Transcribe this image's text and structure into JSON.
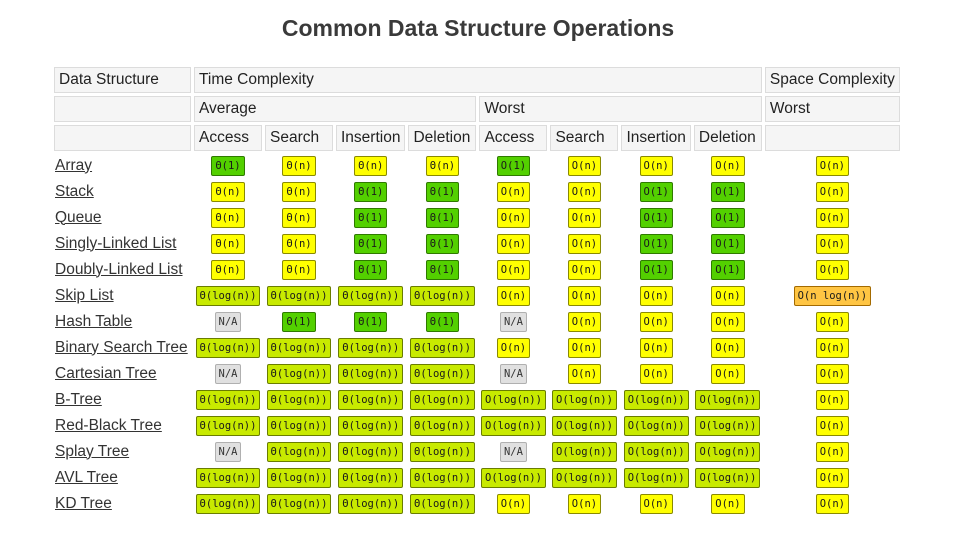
{
  "page": {
    "title": "Common Data Structure Operations"
  },
  "headers": {
    "data_structure": "Data Structure",
    "time_complexity": "Time Complexity",
    "space_complexity": "Space Complexity",
    "average": "Average",
    "worst": "Worst",
    "space_worst": "Worst",
    "ops": [
      "Access",
      "Search",
      "Insertion",
      "Deletion",
      "Access",
      "Search",
      "Insertion",
      "Deletion"
    ]
  },
  "legend_colors": {
    "green": "#53d000",
    "light_green": "#c8ea00",
    "yellow": "#ffff00",
    "orange": "#ffc543",
    "gray": "#e0e0e0"
  },
  "rows": [
    {
      "name": "Array",
      "cells": [
        [
          "Θ(1)",
          "green"
        ],
        [
          "Θ(n)",
          "yellow"
        ],
        [
          "Θ(n)",
          "yellow"
        ],
        [
          "Θ(n)",
          "yellow"
        ],
        [
          "O(1)",
          "green"
        ],
        [
          "O(n)",
          "yellow"
        ],
        [
          "O(n)",
          "yellow"
        ],
        [
          "O(n)",
          "yellow"
        ],
        [
          "O(n)",
          "yellow"
        ]
      ]
    },
    {
      "name": "Stack",
      "cells": [
        [
          "Θ(n)",
          "yellow"
        ],
        [
          "Θ(n)",
          "yellow"
        ],
        [
          "Θ(1)",
          "green"
        ],
        [
          "Θ(1)",
          "green"
        ],
        [
          "O(n)",
          "yellow"
        ],
        [
          "O(n)",
          "yellow"
        ],
        [
          "O(1)",
          "green"
        ],
        [
          "O(1)",
          "green"
        ],
        [
          "O(n)",
          "yellow"
        ]
      ]
    },
    {
      "name": "Queue",
      "cells": [
        [
          "Θ(n)",
          "yellow"
        ],
        [
          "Θ(n)",
          "yellow"
        ],
        [
          "Θ(1)",
          "green"
        ],
        [
          "Θ(1)",
          "green"
        ],
        [
          "O(n)",
          "yellow"
        ],
        [
          "O(n)",
          "yellow"
        ],
        [
          "O(1)",
          "green"
        ],
        [
          "O(1)",
          "green"
        ],
        [
          "O(n)",
          "yellow"
        ]
      ]
    },
    {
      "name": "Singly-Linked List",
      "cells": [
        [
          "Θ(n)",
          "yellow"
        ],
        [
          "Θ(n)",
          "yellow"
        ],
        [
          "Θ(1)",
          "green"
        ],
        [
          "Θ(1)",
          "green"
        ],
        [
          "O(n)",
          "yellow"
        ],
        [
          "O(n)",
          "yellow"
        ],
        [
          "O(1)",
          "green"
        ],
        [
          "O(1)",
          "green"
        ],
        [
          "O(n)",
          "yellow"
        ]
      ]
    },
    {
      "name": "Doubly-Linked List",
      "cells": [
        [
          "Θ(n)",
          "yellow"
        ],
        [
          "Θ(n)",
          "yellow"
        ],
        [
          "Θ(1)",
          "green"
        ],
        [
          "Θ(1)",
          "green"
        ],
        [
          "O(n)",
          "yellow"
        ],
        [
          "O(n)",
          "yellow"
        ],
        [
          "O(1)",
          "green"
        ],
        [
          "O(1)",
          "green"
        ],
        [
          "O(n)",
          "yellow"
        ]
      ]
    },
    {
      "name": "Skip List",
      "cells": [
        [
          "Θ(log(n))",
          "lgreen"
        ],
        [
          "Θ(log(n))",
          "lgreen"
        ],
        [
          "Θ(log(n))",
          "lgreen"
        ],
        [
          "Θ(log(n))",
          "lgreen"
        ],
        [
          "O(n)",
          "yellow"
        ],
        [
          "O(n)",
          "yellow"
        ],
        [
          "O(n)",
          "yellow"
        ],
        [
          "O(n)",
          "yellow"
        ],
        [
          "O(n log(n))",
          "orange"
        ]
      ]
    },
    {
      "name": "Hash Table",
      "cells": [
        [
          "N/A",
          "gray"
        ],
        [
          "Θ(1)",
          "green"
        ],
        [
          "Θ(1)",
          "green"
        ],
        [
          "Θ(1)",
          "green"
        ],
        [
          "N/A",
          "gray"
        ],
        [
          "O(n)",
          "yellow"
        ],
        [
          "O(n)",
          "yellow"
        ],
        [
          "O(n)",
          "yellow"
        ],
        [
          "O(n)",
          "yellow"
        ]
      ]
    },
    {
      "name": "Binary Search Tree",
      "cells": [
        [
          "Θ(log(n))",
          "lgreen"
        ],
        [
          "Θ(log(n))",
          "lgreen"
        ],
        [
          "Θ(log(n))",
          "lgreen"
        ],
        [
          "Θ(log(n))",
          "lgreen"
        ],
        [
          "O(n)",
          "yellow"
        ],
        [
          "O(n)",
          "yellow"
        ],
        [
          "O(n)",
          "yellow"
        ],
        [
          "O(n)",
          "yellow"
        ],
        [
          "O(n)",
          "yellow"
        ]
      ]
    },
    {
      "name": "Cartesian Tree",
      "cells": [
        [
          "N/A",
          "gray"
        ],
        [
          "Θ(log(n))",
          "lgreen"
        ],
        [
          "Θ(log(n))",
          "lgreen"
        ],
        [
          "Θ(log(n))",
          "lgreen"
        ],
        [
          "N/A",
          "gray"
        ],
        [
          "O(n)",
          "yellow"
        ],
        [
          "O(n)",
          "yellow"
        ],
        [
          "O(n)",
          "yellow"
        ],
        [
          "O(n)",
          "yellow"
        ]
      ]
    },
    {
      "name": "B-Tree",
      "cells": [
        [
          "Θ(log(n))",
          "lgreen"
        ],
        [
          "Θ(log(n))",
          "lgreen"
        ],
        [
          "Θ(log(n))",
          "lgreen"
        ],
        [
          "Θ(log(n))",
          "lgreen"
        ],
        [
          "O(log(n))",
          "lgreen"
        ],
        [
          "O(log(n))",
          "lgreen"
        ],
        [
          "O(log(n))",
          "lgreen"
        ],
        [
          "O(log(n))",
          "lgreen"
        ],
        [
          "O(n)",
          "yellow"
        ]
      ]
    },
    {
      "name": "Red-Black Tree",
      "cells": [
        [
          "Θ(log(n))",
          "lgreen"
        ],
        [
          "Θ(log(n))",
          "lgreen"
        ],
        [
          "Θ(log(n))",
          "lgreen"
        ],
        [
          "Θ(log(n))",
          "lgreen"
        ],
        [
          "O(log(n))",
          "lgreen"
        ],
        [
          "O(log(n))",
          "lgreen"
        ],
        [
          "O(log(n))",
          "lgreen"
        ],
        [
          "O(log(n))",
          "lgreen"
        ],
        [
          "O(n)",
          "yellow"
        ]
      ]
    },
    {
      "name": "Splay Tree",
      "cells": [
        [
          "N/A",
          "gray"
        ],
        [
          "Θ(log(n))",
          "lgreen"
        ],
        [
          "Θ(log(n))",
          "lgreen"
        ],
        [
          "Θ(log(n))",
          "lgreen"
        ],
        [
          "N/A",
          "gray"
        ],
        [
          "O(log(n))",
          "lgreen"
        ],
        [
          "O(log(n))",
          "lgreen"
        ],
        [
          "O(log(n))",
          "lgreen"
        ],
        [
          "O(n)",
          "yellow"
        ]
      ]
    },
    {
      "name": "AVL Tree",
      "cells": [
        [
          "Θ(log(n))",
          "lgreen"
        ],
        [
          "Θ(log(n))",
          "lgreen"
        ],
        [
          "Θ(log(n))",
          "lgreen"
        ],
        [
          "Θ(log(n))",
          "lgreen"
        ],
        [
          "O(log(n))",
          "lgreen"
        ],
        [
          "O(log(n))",
          "lgreen"
        ],
        [
          "O(log(n))",
          "lgreen"
        ],
        [
          "O(log(n))",
          "lgreen"
        ],
        [
          "O(n)",
          "yellow"
        ]
      ]
    },
    {
      "name": "KD Tree",
      "cells": [
        [
          "Θ(log(n))",
          "lgreen"
        ],
        [
          "Θ(log(n))",
          "lgreen"
        ],
        [
          "Θ(log(n))",
          "lgreen"
        ],
        [
          "Θ(log(n))",
          "lgreen"
        ],
        [
          "O(n)",
          "yellow"
        ],
        [
          "O(n)",
          "yellow"
        ],
        [
          "O(n)",
          "yellow"
        ],
        [
          "O(n)",
          "yellow"
        ],
        [
          "O(n)",
          "yellow"
        ]
      ]
    }
  ]
}
